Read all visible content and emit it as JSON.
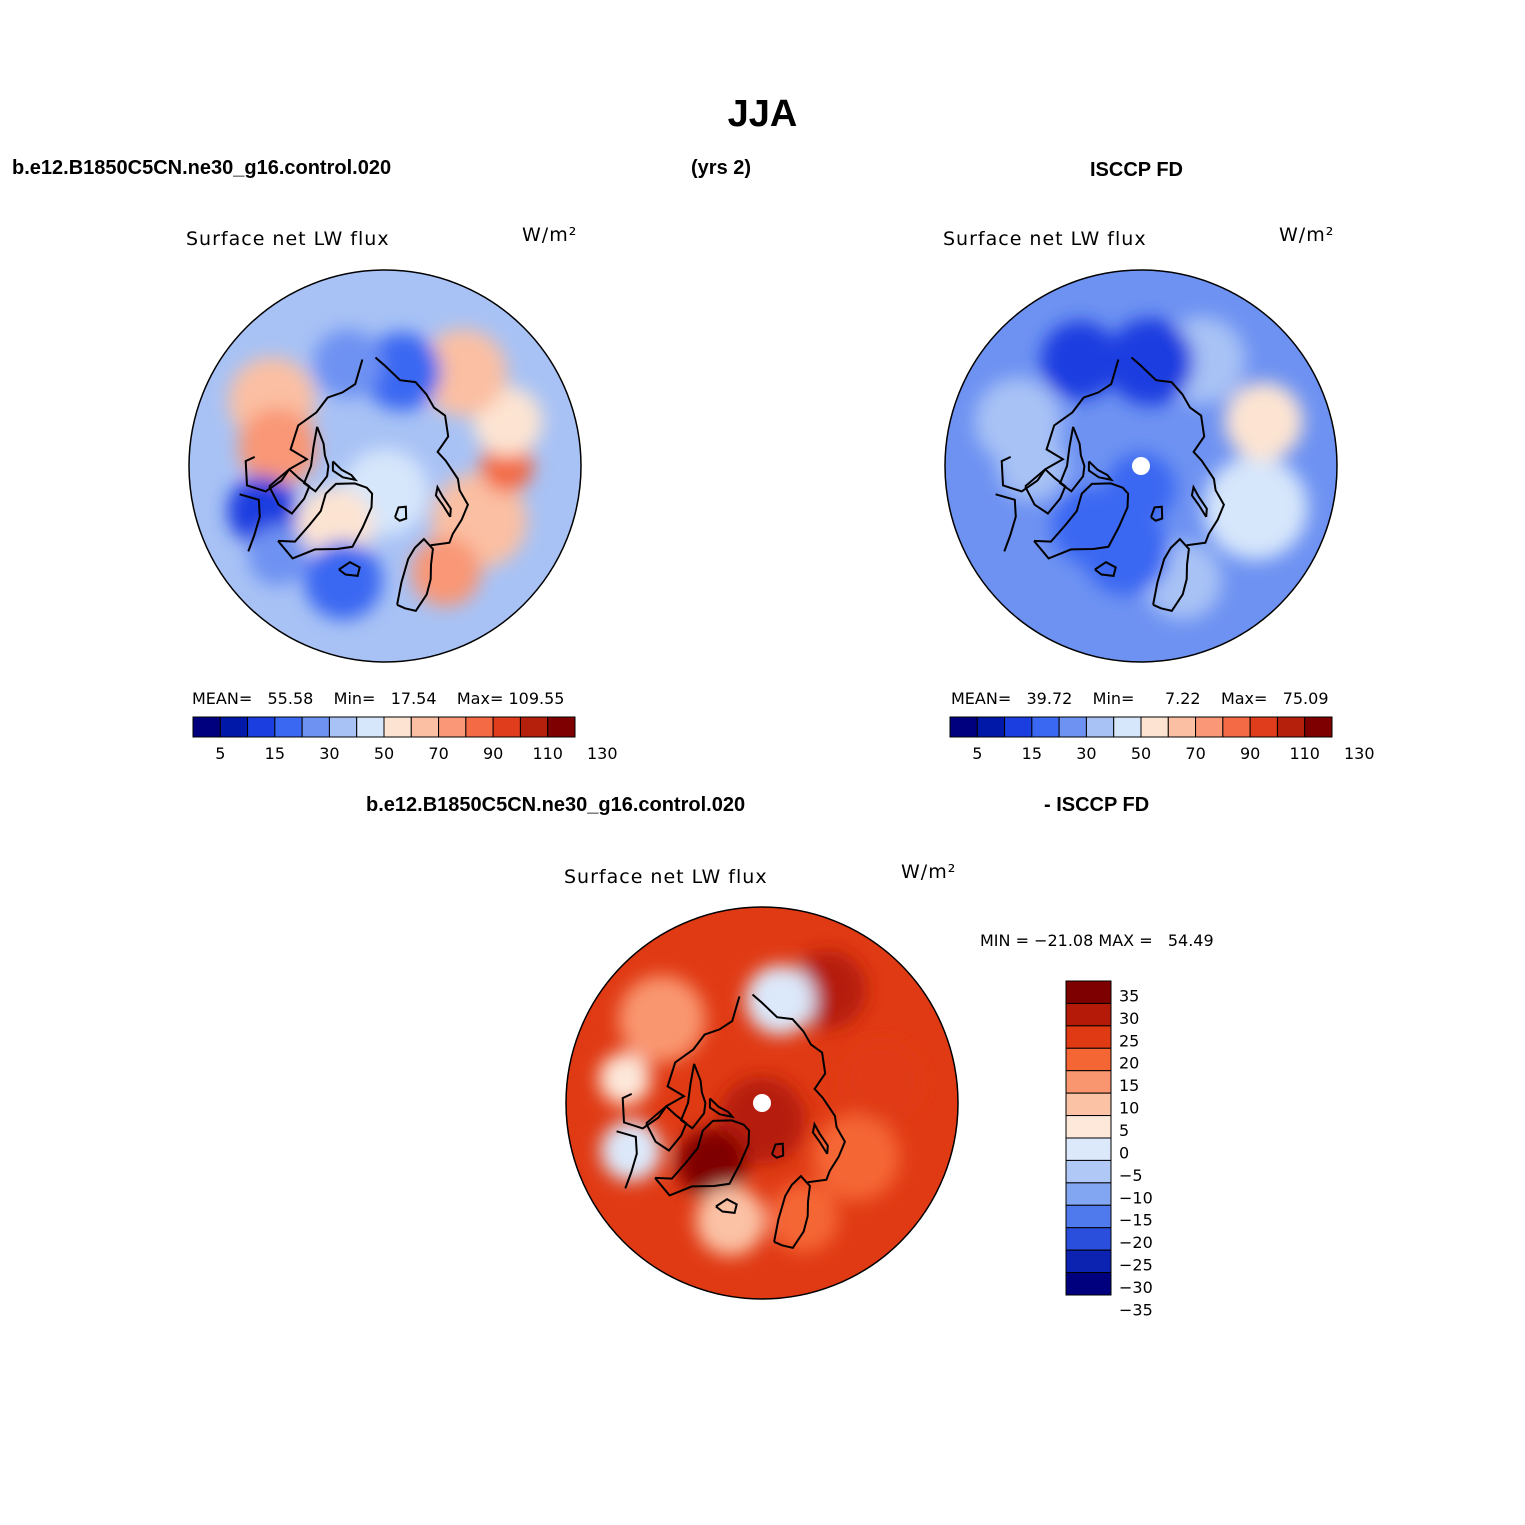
{
  "figure": {
    "title": "JJA",
    "case_name": "b.e12.B1850C5CN.ne30_g16.control.020",
    "years": "(yrs 2)",
    "obs_name": "ISCCP FD",
    "diff_case": "b.e12.B1850C5CN.ne30_g16.control.020",
    "diff_obs": "- ISCCP FD"
  },
  "colors": {
    "abs_scale": [
      "#00007f",
      "#0018a8",
      "#1b3ee0",
      "#3a68f2",
      "#6e92f2",
      "#a8c2f5",
      "#d6e6fb",
      "#fde4d2",
      "#fbbfa3",
      "#f99776",
      "#f36a45",
      "#e03d1c",
      "#b5200c",
      "#7f0000"
    ],
    "diff_scale": [
      "#7f0000",
      "#b51a08",
      "#e03a14",
      "#f56635",
      "#f99670",
      "#fbc2a6",
      "#fde8da",
      "#dce9fb",
      "#b0c8f5",
      "#82a6f2",
      "#4e7aee",
      "#2a4fdc",
      "#0c22b0",
      "#00007f"
    ]
  },
  "chart_data": [
    {
      "type": "heatmap",
      "projection": "north-polar-stereographic",
      "title": "Surface net LW flux",
      "units": "W/m²",
      "stats": {
        "mean_label": "MEAN=",
        "mean": "55.58",
        "min_label": "Min=",
        "min": "17.54",
        "max_label": "Max=",
        "max": "109.55"
      },
      "colorbar": {
        "orientation": "horizontal",
        "tick_labels": [
          "5",
          "15",
          "30",
          "50",
          "70",
          "90",
          "110",
          "130"
        ],
        "levels": [
          5,
          10,
          15,
          20,
          30,
          40,
          50,
          60,
          70,
          80,
          90,
          100,
          110,
          120,
          130
        ]
      },
      "field": "mostly blue over Arctic Ocean and ice, light red over Eurasia and North America",
      "blobs": [
        {
          "lon": 0,
          "lat": 84,
          "r": 10,
          "c": 6
        },
        {
          "lon": 60,
          "lat": 65,
          "r": 11,
          "c": 8
        },
        {
          "lon": 90,
          "lat": 62,
          "r": 6,
          "c": 10
        },
        {
          "lon": 110,
          "lat": 60,
          "r": 8,
          "c": 7
        },
        {
          "lon": 140,
          "lat": 62,
          "r": 10,
          "c": 8
        },
        {
          "lon": 170,
          "lat": 68,
          "r": 9,
          "c": 3
        },
        {
          "lon": -160,
          "lat": 65,
          "r": 8,
          "c": 4
        },
        {
          "lon": -120,
          "lat": 60,
          "r": 10,
          "c": 8
        },
        {
          "lon": -100,
          "lat": 65,
          "r": 9,
          "c": 9
        },
        {
          "lon": -70,
          "lat": 60,
          "r": 8,
          "c": 2
        },
        {
          "lon": -40,
          "lat": 72,
          "r": 9,
          "c": 7
        },
        {
          "lon": 30,
          "lat": 62,
          "r": 8,
          "c": 9
        },
        {
          "lon": -20,
          "lat": 62,
          "r": 9,
          "c": 3
        },
        {
          "lon": -50,
          "lat": 58,
          "r": 7,
          "c": 4
        }
      ],
      "base_color": 5
    },
    {
      "type": "heatmap",
      "projection": "north-polar-stereographic",
      "title": "Surface net LW flux",
      "units": "W/m²",
      "stats": {
        "mean_label": "MEAN=",
        "mean": "39.72",
        "min_label": "Min=",
        "min": "7.22",
        "max_label": "Max=",
        "max": "75.09"
      },
      "colorbar": {
        "orientation": "horizontal",
        "tick_labels": [
          "5",
          "15",
          "30",
          "50",
          "70",
          "90",
          "110",
          "130"
        ],
        "levels": [
          5,
          10,
          15,
          20,
          30,
          40,
          50,
          60,
          70,
          80,
          90,
          100,
          110,
          120,
          130
        ]
      },
      "field": "blue over Arctic Ocean, light blue over continents, pale over Siberia",
      "blobs": [
        {
          "lon": 0,
          "lat": 85,
          "r": 8,
          "c": 3
        },
        {
          "lon": 70,
          "lat": 62,
          "r": 12,
          "c": 6
        },
        {
          "lon": 110,
          "lat": 60,
          "r": 9,
          "c": 7
        },
        {
          "lon": 150,
          "lat": 62,
          "r": 10,
          "c": 5
        },
        {
          "lon": 175,
          "lat": 66,
          "r": 10,
          "c": 2
        },
        {
          "lon": -150,
          "lat": 62,
          "r": 9,
          "c": 2
        },
        {
          "lon": -110,
          "lat": 60,
          "r": 10,
          "c": 5
        },
        {
          "lon": -90,
          "lat": 65,
          "r": 8,
          "c": 5
        },
        {
          "lon": -40,
          "lat": 72,
          "r": 9,
          "c": 3
        },
        {
          "lon": 20,
          "lat": 62,
          "r": 9,
          "c": 5
        },
        {
          "lon": -10,
          "lat": 70,
          "r": 10,
          "c": 3
        }
      ],
      "base_color": 4
    },
    {
      "type": "heatmap",
      "projection": "north-polar-stereographic",
      "title": "Surface net LW flux",
      "units": "W/m²",
      "stats": {
        "min_label": "MIN =",
        "min": "−21.08",
        "max_label": "MAX =",
        "max": "54.49"
      },
      "colorbar": {
        "orientation": "vertical",
        "tick_labels": [
          "35",
          "30",
          "25",
          "20",
          "15",
          "10",
          "5",
          "0",
          "−5",
          "−10",
          "−15",
          "−20",
          "−25",
          "−30",
          "−35"
        ]
      },
      "field": "mostly positive (red) differences, strongest over Greenland and central Arctic",
      "blobs": [
        {
          "lon": 0,
          "lat": 86,
          "r": 10,
          "c": 1
        },
        {
          "lon": -40,
          "lat": 72,
          "r": 8,
          "c": 0
        },
        {
          "lon": 60,
          "lat": 65,
          "r": 10,
          "c": 3
        },
        {
          "lon": 100,
          "lat": 62,
          "r": 9,
          "c": 2
        },
        {
          "lon": 150,
          "lat": 60,
          "r": 9,
          "c": 1
        },
        {
          "lon": 170,
          "lat": 66,
          "r": 8,
          "c": 7
        },
        {
          "lon": -130,
          "lat": 60,
          "r": 10,
          "c": 4
        },
        {
          "lon": -100,
          "lat": 58,
          "r": 6,
          "c": 6
        },
        {
          "lon": -70,
          "lat": 58,
          "r": 7,
          "c": 7
        },
        {
          "lon": 20,
          "lat": 62,
          "r": 8,
          "c": 3
        },
        {
          "lon": -15,
          "lat": 62,
          "r": 8,
          "c": 5
        }
      ],
      "base_color": 2
    }
  ]
}
